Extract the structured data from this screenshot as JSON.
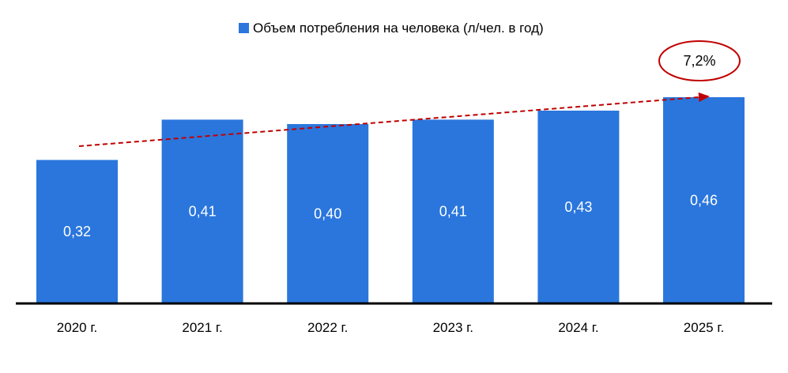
{
  "chart_data": {
    "type": "bar",
    "categories": [
      "2020 г.",
      "2021 г.",
      "2022 г.",
      "2023 г.",
      "2024 г.",
      "2025 г."
    ],
    "series": [
      {
        "name": "Объем потребления на человека (л/чел. в год)",
        "values": [
          0.32,
          0.41,
          0.4,
          0.41,
          0.43,
          0.46
        ],
        "value_labels": [
          "0,32",
          "0,41",
          "0,40",
          "0,41",
          "0,43",
          "0,46"
        ],
        "color": "#2a76dd"
      }
    ],
    "ylim": [
      0,
      0.46
    ],
    "grid": false,
    "legend": "top-center",
    "trend_line": {
      "style": "dashed",
      "color": "#c00000",
      "direction": "increasing"
    },
    "annotations": [
      {
        "text": "7,2%",
        "shape": "ellipse",
        "border_color": "#c00000",
        "position": "above-last-bar"
      }
    ]
  }
}
